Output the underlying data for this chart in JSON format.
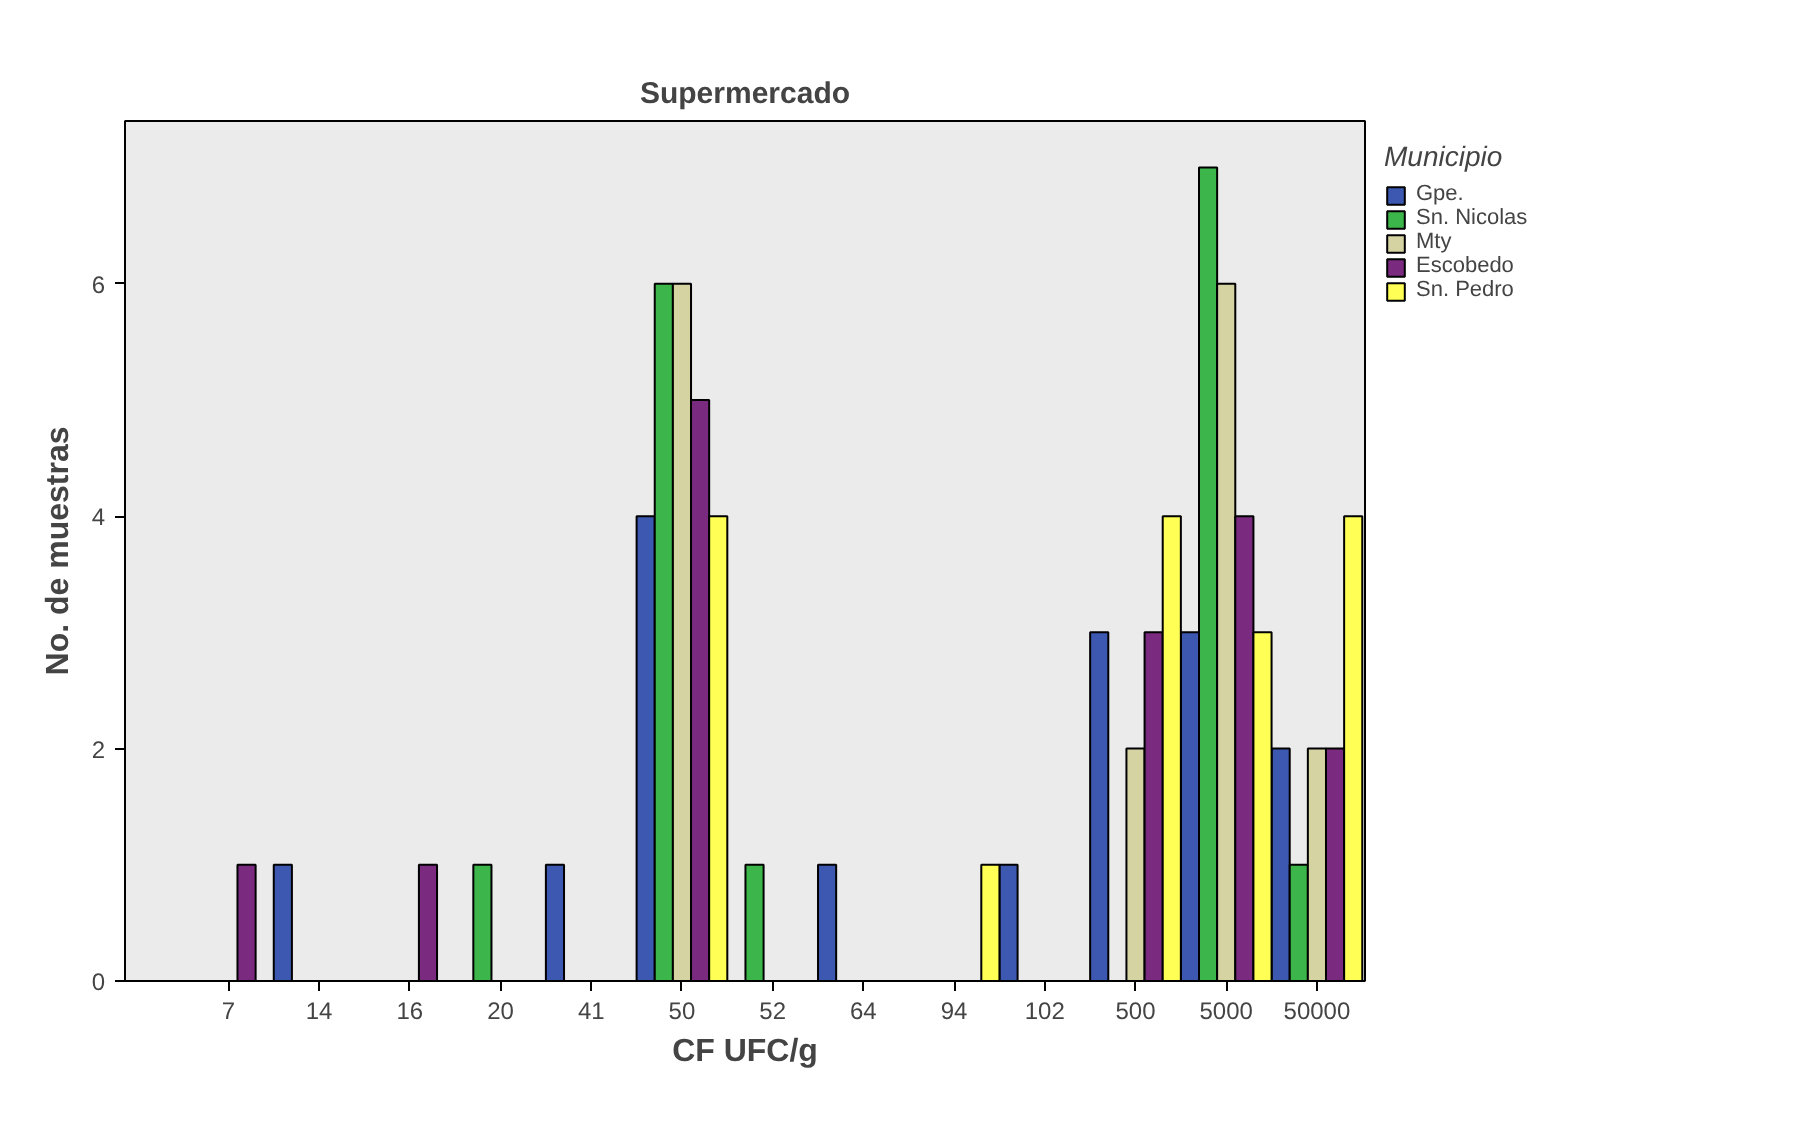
{
  "chart_data": {
    "type": "bar",
    "title": "Supermercado",
    "xlabel": "CF UFC/g",
    "ylabel": "No. de muestras",
    "legend_title": "Municipio",
    "legend": "right",
    "grid": false,
    "categories": [
      "7",
      "14",
      "16",
      "20",
      "41",
      "50",
      "52",
      "64",
      "94",
      "102",
      "500",
      "5000",
      "50000"
    ],
    "ylim": [
      0,
      7.4
    ],
    "yticks": [
      0,
      2,
      4,
      6
    ],
    "series": [
      {
        "name": "Gpe.",
        "color": "#3c58b0",
        "values": [
          null,
          1,
          null,
          null,
          1,
          4,
          null,
          1,
          null,
          1,
          3,
          3,
          2
        ]
      },
      {
        "name": "Sn. Nicolas",
        "color": "#3cb54a",
        "values": [
          null,
          null,
          null,
          1,
          null,
          6,
          1,
          null,
          null,
          null,
          null,
          7,
          1
        ]
      },
      {
        "name": "Mty",
        "color": "#d6d3a2",
        "values": [
          null,
          null,
          null,
          null,
          null,
          6,
          null,
          null,
          null,
          null,
          2,
          6,
          2
        ]
      },
      {
        "name": "Escobedo",
        "color": "#7a2a7f",
        "values": [
          1,
          null,
          1,
          null,
          null,
          5,
          null,
          null,
          null,
          null,
          3,
          4,
          2
        ]
      },
      {
        "name": "Sn. Pedro",
        "color": "#ffff55",
        "values": [
          null,
          null,
          null,
          null,
          null,
          4,
          null,
          null,
          1,
          null,
          4,
          3,
          4
        ]
      }
    ]
  }
}
